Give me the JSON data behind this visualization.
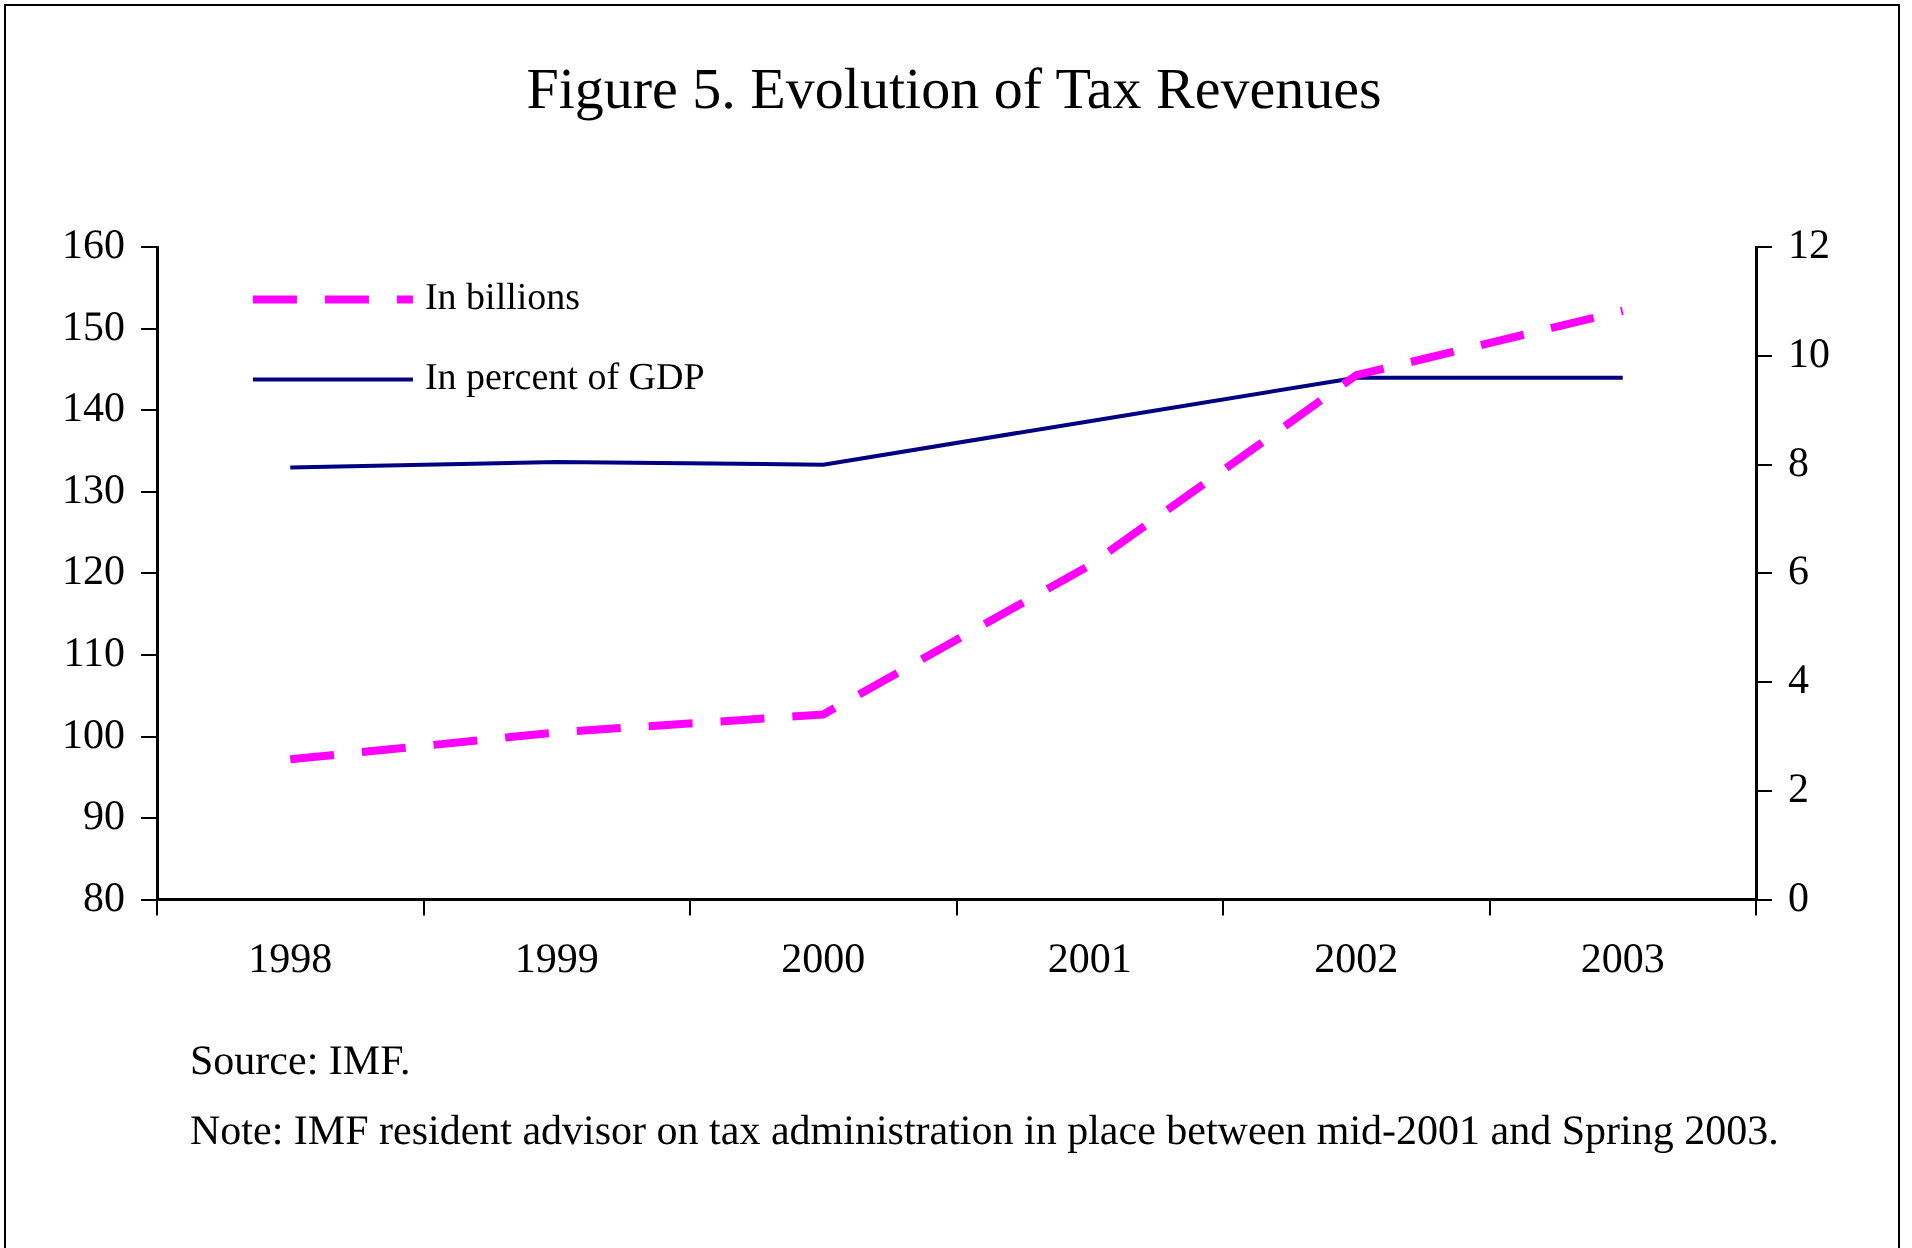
{
  "chart_data": {
    "type": "line",
    "title": "Figure 5. Evolution of Tax Revenues",
    "categories": [
      "1998",
      "1999",
      "2000",
      "2001",
      "2002",
      "2003"
    ],
    "series": [
      {
        "name": "In billions",
        "color": "#ff00ff",
        "line_style": "dashed",
        "values": [
          97.2,
          100.5,
          102.7,
          121,
          144.3,
          152.2
        ]
      },
      {
        "name": "In percent of GDP",
        "color": "#000080",
        "line_style": "solid",
        "axis": "y2",
        "values": [
          7.95,
          8.05,
          8.0,
          8.8,
          9.6,
          9.6
        ]
      }
    ],
    "ylim": [
      80,
      160
    ],
    "yticks": [
      80,
      90,
      100,
      110,
      120,
      130,
      140,
      150,
      160
    ],
    "y2lim": [
      0,
      12
    ],
    "y2ticks": [
      0,
      2,
      4,
      6,
      8,
      10,
      12
    ],
    "grid": false,
    "legend": "top left",
    "marker": "none",
    "annotations": [
      "Source: IMF.",
      "Note: IMF resident advisor on tax administration in place between mid-2001 and Spring 2003."
    ]
  }
}
